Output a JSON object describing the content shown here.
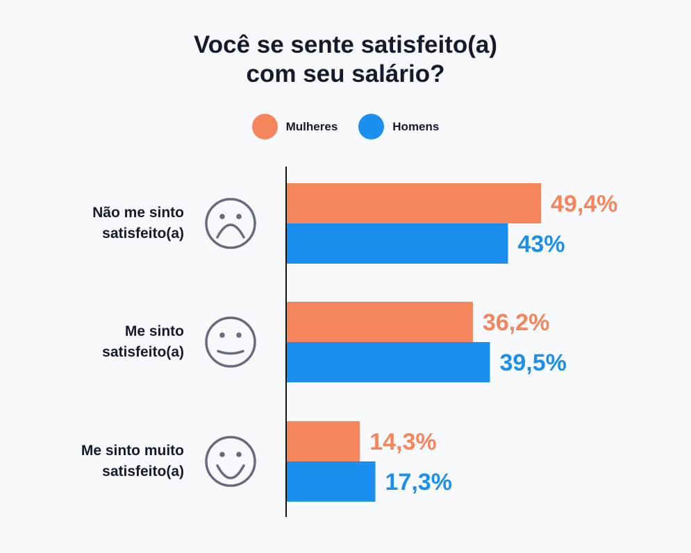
{
  "chart_data": {
    "type": "bar",
    "orientation": "horizontal",
    "title_lines": [
      "Você se sente satisfeito(a)",
      "com seu salário?"
    ],
    "categories": [
      {
        "lines": [
          "Não me sinto",
          "satisfeito(a)"
        ],
        "icon": "sad-face-icon"
      },
      {
        "lines": [
          "Me sinto",
          "satisfeito(a)"
        ],
        "icon": "smile-face-icon"
      },
      {
        "lines": [
          "Me sinto muito",
          "satisfeito(a)"
        ],
        "icon": "big-smile-face-icon"
      }
    ],
    "series": [
      {
        "name": "Mulheres",
        "color": "#f5865c",
        "values": [
          49.4,
          36.2,
          14.3
        ],
        "labels": [
          "49,4%",
          "36,2%",
          "14,3%"
        ]
      },
      {
        "name": "Homens",
        "color": "#1b8fef",
        "values": [
          43,
          39.5,
          17.3
        ],
        "labels": [
          "43%",
          "39,5%",
          "17,3%"
        ]
      }
    ],
    "xlim": [
      0,
      60
    ],
    "grid": false,
    "legend_position": "top"
  }
}
